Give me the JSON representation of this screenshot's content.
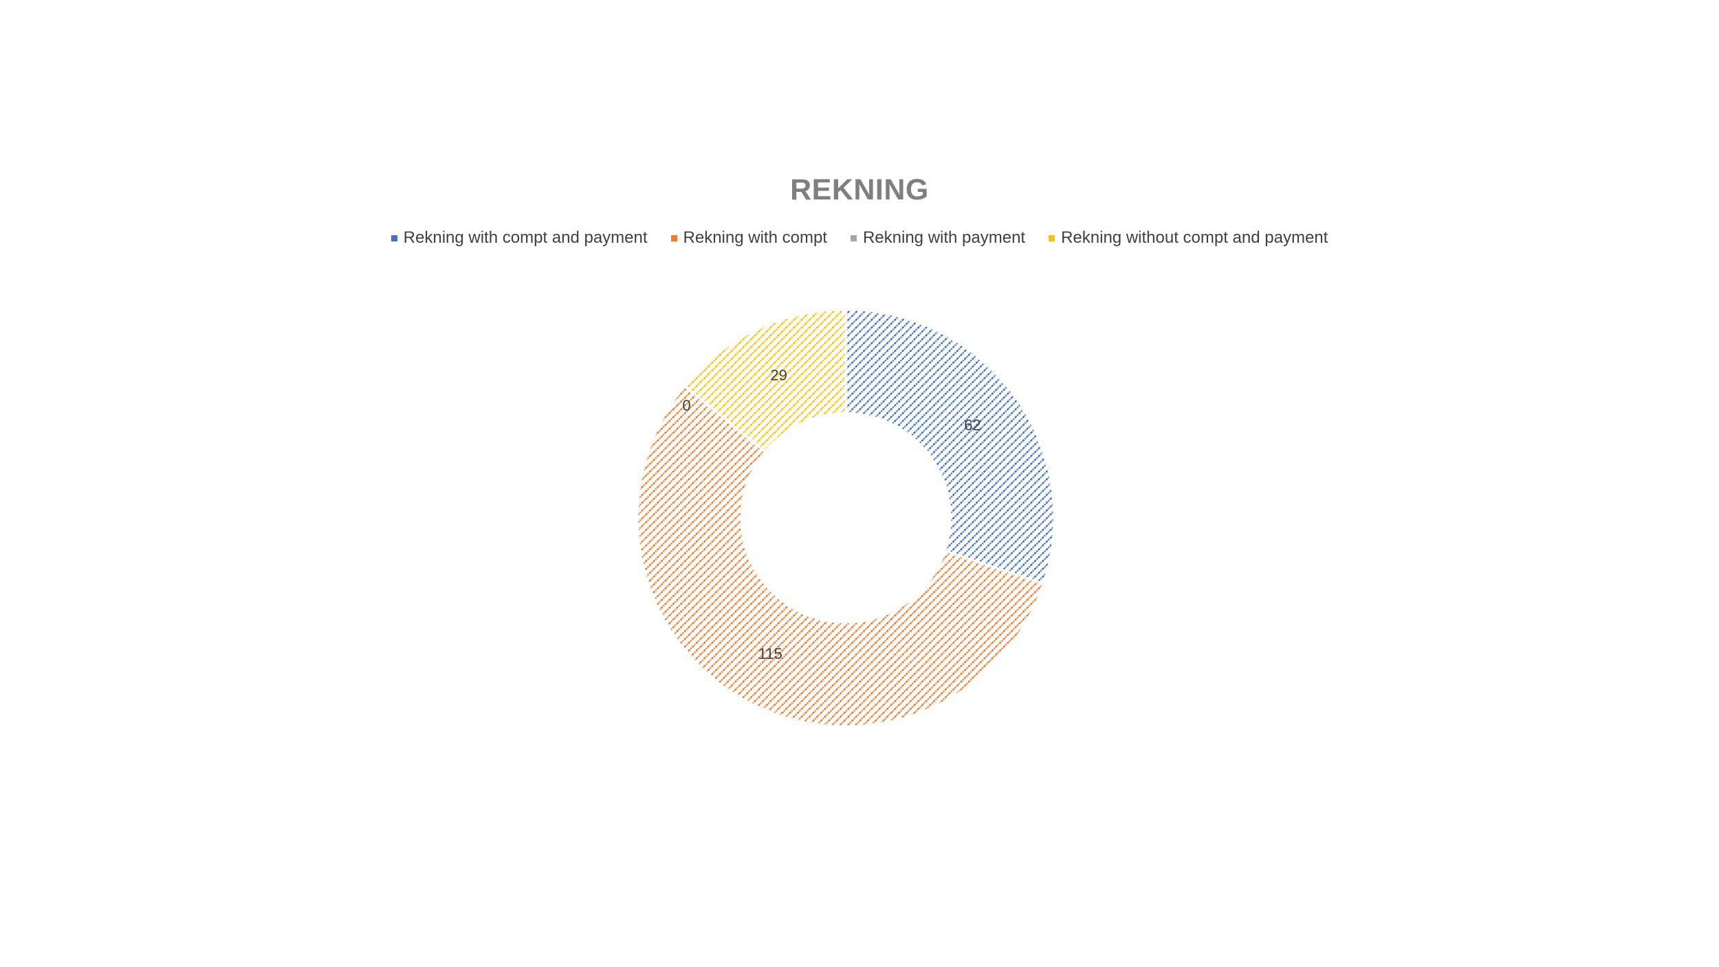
{
  "chart_data": {
    "type": "pie",
    "subtype": "donut",
    "title": "REKNING",
    "legend_position": "top",
    "categories": [
      "Rekning with compt and payment",
      "Rekning with compt",
      "Rekning with payment",
      "Rekning without compt and payment"
    ],
    "values": [
      62,
      115,
      0,
      29
    ],
    "colors": [
      "#4472c4",
      "#ed7d31",
      "#a5a5a5",
      "#ffc000"
    ],
    "fill_pattern": "diagonal-dotted-hatch",
    "data_labels": [
      "62",
      "115",
      "0",
      "29"
    ]
  }
}
